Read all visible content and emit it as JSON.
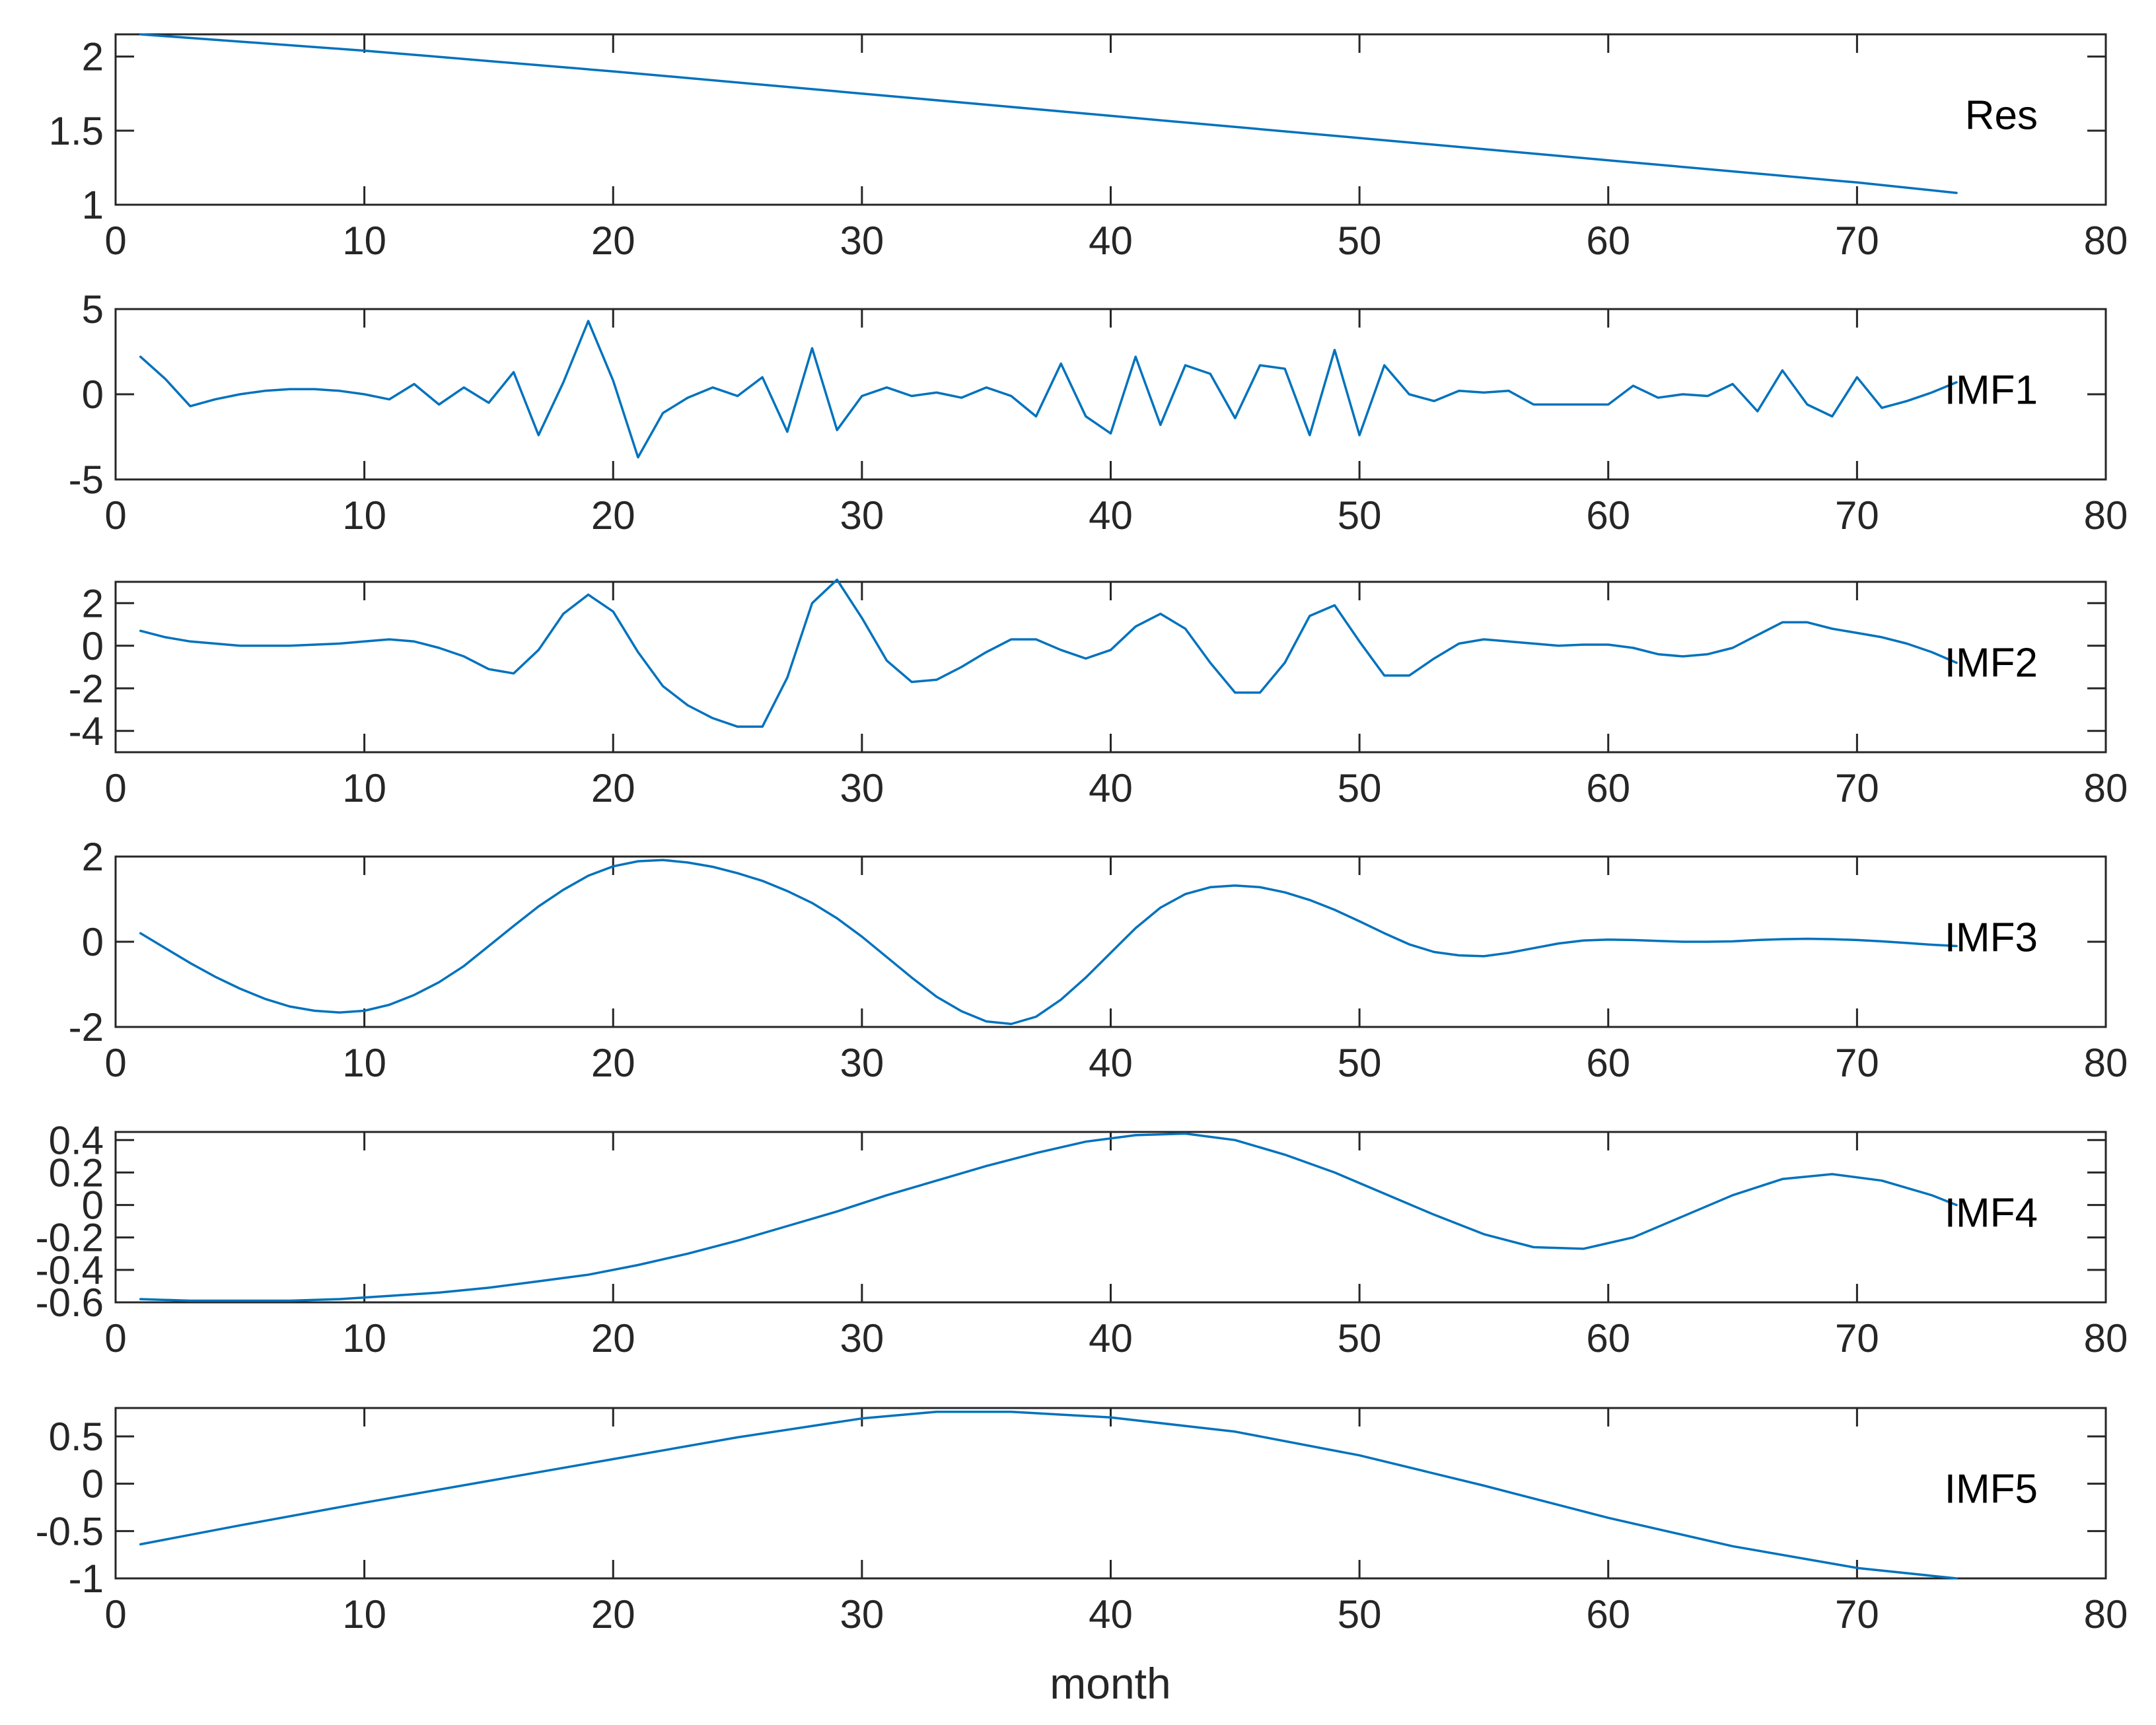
{
  "chart_data": {
    "type": "line",
    "xlabel": "month",
    "line_color": "#0072BD",
    "axis_color": "#262626",
    "grid": false,
    "panels": [
      {
        "label": "Res",
        "xlim": [
          0,
          80
        ],
        "xticks": [
          0,
          10,
          20,
          30,
          40,
          50,
          60,
          70,
          80
        ],
        "ylim": [
          1,
          2.15
        ],
        "yticks": [
          1,
          1.5,
          2
        ],
        "ytick_labels": [
          "1",
          "1.5",
          "2"
        ],
        "series": [
          {
            "x": [
              1,
              10,
              20,
              30,
              40,
              50,
              60,
              70,
              74
            ],
            "y": [
              2.15,
              2.04,
              1.9,
              1.75,
              1.6,
              1.45,
              1.3,
              1.15,
              1.08
            ]
          }
        ]
      },
      {
        "label": "IMF1",
        "xlim": [
          0,
          80
        ],
        "xticks": [
          0,
          10,
          20,
          30,
          40,
          50,
          60,
          70,
          80
        ],
        "ylim": [
          -5,
          5
        ],
        "yticks": [
          -5,
          0,
          5
        ],
        "ytick_labels": [
          "-5",
          "0",
          "5"
        ],
        "series": [
          {
            "x": [
              1,
              2,
              3,
              4,
              5,
              6,
              7,
              8,
              9,
              10,
              11,
              12,
              13,
              14,
              15,
              16,
              17,
              18,
              19,
              20,
              21,
              22,
              23,
              24,
              25,
              26,
              27,
              28,
              29,
              30,
              31,
              32,
              33,
              34,
              35,
              36,
              37,
              38,
              39,
              40,
              41,
              42,
              43,
              44,
              45,
              46,
              47,
              48,
              49,
              50,
              51,
              52,
              53,
              54,
              55,
              56,
              57,
              58,
              59,
              60,
              61,
              62,
              63,
              64,
              65,
              66,
              67,
              68,
              69,
              70,
              71,
              72,
              73,
              74
            ],
            "y": [
              2.2,
              0.9,
              -0.7,
              -0.3,
              0,
              0.2,
              0.3,
              0.3,
              0.2,
              0,
              -0.3,
              0.6,
              -0.6,
              0.4,
              -0.5,
              1.3,
              -2.4,
              0.7,
              4.3,
              0.8,
              -3.7,
              -1.1,
              -0.2,
              0.4,
              -0.1,
              1,
              -2.2,
              2.7,
              -2.1,
              -0.1,
              0.4,
              -0.1,
              0.1,
              -0.2,
              0.4,
              -0.1,
              -1.3,
              1.8,
              -1.3,
              -2.3,
              2.2,
              -1.8,
              1.7,
              1.2,
              -1.4,
              1.7,
              1.5,
              -2.4,
              2.6,
              -2.4,
              1.7,
              0,
              -0.4,
              0.2,
              0.1,
              0.2,
              -0.6,
              -0.6,
              -0.6,
              -0.6,
              0.5,
              -0.2,
              0,
              -0.1,
              0.6,
              -1,
              1.4,
              -0.6,
              -1.3,
              1,
              -0.8,
              -0.4,
              0.1,
              0.7
            ]
          }
        ]
      },
      {
        "label": "IMF2",
        "xlim": [
          0,
          80
        ],
        "xticks": [
          0,
          10,
          20,
          30,
          40,
          50,
          60,
          70,
          80
        ],
        "ylim": [
          -5,
          3
        ],
        "yticks": [
          -4,
          -2,
          0,
          2
        ],
        "ytick_labels": [
          "-4",
          "-2",
          "0",
          "2"
        ],
        "series": [
          {
            "x": [
              1,
              2,
              3,
              4,
              5,
              6,
              7,
              8,
              9,
              10,
              11,
              12,
              13,
              14,
              15,
              16,
              17,
              18,
              19,
              20,
              21,
              22,
              23,
              24,
              25,
              26,
              27,
              28,
              29,
              30,
              31,
              32,
              33,
              34,
              35,
              36,
              37,
              38,
              39,
              40,
              41,
              42,
              43,
              44,
              45,
              46,
              47,
              48,
              49,
              50,
              51,
              52,
              53,
              54,
              55,
              56,
              57,
              58,
              59,
              60,
              61,
              62,
              63,
              64,
              65,
              66,
              67,
              68,
              69,
              70,
              71,
              72,
              73,
              74
            ],
            "y": [
              0.7,
              0.4,
              0.2,
              0.1,
              0,
              0,
              0,
              0.05,
              0.1,
              0.2,
              0.3,
              0.2,
              -0.1,
              -0.5,
              -1.1,
              -1.3,
              -0.2,
              1.5,
              2.4,
              1.6,
              -0.3,
              -1.9,
              -2.8,
              -3.4,
              -3.8,
              -3.8,
              -1.5,
              2,
              3.1,
              1.3,
              -0.7,
              -1.7,
              -1.6,
              -1,
              -0.3,
              0.3,
              0.3,
              -0.2,
              -0.6,
              -0.2,
              0.9,
              1.5,
              0.8,
              -0.8,
              -2.2,
              -2.2,
              -0.8,
              1.4,
              1.9,
              0.2,
              -1.4,
              -1.4,
              -0.6,
              0.1,
              0.3,
              0.2,
              0.1,
              0,
              0.05,
              0.05,
              -0.1,
              -0.4,
              -0.5,
              -0.4,
              -0.1,
              0.5,
              1.1,
              1.1,
              0.8,
              0.6,
              0.4,
              0.1,
              -0.3,
              -0.8
            ]
          }
        ]
      },
      {
        "label": "IMF3",
        "xlim": [
          0,
          80
        ],
        "xticks": [
          0,
          10,
          20,
          30,
          40,
          50,
          60,
          70,
          80
        ],
        "ylim": [
          -2,
          2
        ],
        "yticks": [
          -2,
          0,
          2
        ],
        "ytick_labels": [
          "-2",
          "0",
          "2"
        ],
        "series": [
          {
            "x": [
              1,
              2,
              3,
              4,
              5,
              6,
              7,
              8,
              9,
              10,
              11,
              12,
              13,
              14,
              15,
              16,
              17,
              18,
              19,
              20,
              21,
              22,
              23,
              24,
              25,
              26,
              27,
              28,
              29,
              30,
              31,
              32,
              33,
              34,
              35,
              36,
              37,
              38,
              39,
              40,
              41,
              42,
              43,
              44,
              45,
              46,
              47,
              48,
              49,
              50,
              51,
              52,
              53,
              54,
              55,
              56,
              57,
              58,
              59,
              60,
              61,
              62,
              63,
              64,
              65,
              66,
              67,
              68,
              69,
              70,
              71,
              72,
              73,
              74
            ],
            "y": [
              0.2,
              -0.15,
              -0.5,
              -0.82,
              -1.1,
              -1.34,
              -1.52,
              -1.62,
              -1.66,
              -1.62,
              -1.48,
              -1.25,
              -0.95,
              -0.57,
              -0.1,
              0.37,
              0.83,
              1.22,
              1.55,
              1.77,
              1.89,
              1.92,
              1.86,
              1.76,
              1.61,
              1.43,
              1.19,
              0.91,
              0.55,
              0.12,
              -0.36,
              -0.84,
              -1.29,
              -1.63,
              -1.87,
              -1.93,
              -1.76,
              -1.36,
              -0.84,
              -0.26,
              0.32,
              0.8,
              1.12,
              1.28,
              1.32,
              1.28,
              1.16,
              0.98,
              0.75,
              0.48,
              0.2,
              -0.06,
              -0.24,
              -0.32,
              -0.34,
              -0.26,
              -0.15,
              -0.04,
              0.03,
              0.05,
              0.04,
              0.02,
              0,
              0,
              0.01,
              0.04,
              0.06,
              0.07,
              0.06,
              0.04,
              0.01,
              -0.03,
              -0.07,
              -0.1
            ]
          }
        ]
      },
      {
        "label": "IMF4",
        "xlim": [
          0,
          80
        ],
        "xticks": [
          0,
          10,
          20,
          30,
          40,
          50,
          60,
          70,
          80
        ],
        "ylim": [
          -0.6,
          0.45
        ],
        "yticks": [
          -0.6,
          -0.4,
          -0.2,
          0,
          0.2,
          0.4
        ],
        "ytick_labels": [
          "-0.6",
          "-0.4",
          "-0.2",
          "0",
          "0.2",
          "0.4"
        ],
        "series": [
          {
            "x": [
              1,
              3,
              5,
              7,
              9,
              11,
              13,
              15,
              17,
              19,
              21,
              23,
              25,
              27,
              29,
              31,
              33,
              35,
              37,
              39,
              41,
              43,
              45,
              47,
              49,
              51,
              53,
              55,
              57,
              59,
              61,
              63,
              65,
              67,
              69,
              71,
              73,
              74
            ],
            "y": [
              -0.58,
              -0.59,
              -0.59,
              -0.59,
              -0.58,
              -0.56,
              -0.54,
              -0.51,
              -0.47,
              -0.43,
              -0.37,
              -0.3,
              -0.22,
              -0.13,
              -0.04,
              0.06,
              0.15,
              0.24,
              0.32,
              0.39,
              0.43,
              0.44,
              0.4,
              0.31,
              0.2,
              0.07,
              -0.06,
              -0.18,
              -0.26,
              -0.27,
              -0.2,
              -0.07,
              0.06,
              0.16,
              0.19,
              0.15,
              0.06,
              0
            ]
          }
        ]
      },
      {
        "label": "IMF5",
        "xlim": [
          0,
          80
        ],
        "xticks": [
          0,
          10,
          20,
          30,
          40,
          50,
          60,
          70,
          80
        ],
        "ylim": [
          -1,
          0.8
        ],
        "yticks": [
          -1,
          -0.5,
          0,
          0.5
        ],
        "ytick_labels": [
          "-1",
          "-0.5",
          "0",
          "0.5"
        ],
        "series": [
          {
            "x": [
              1,
              5,
              10,
              15,
              20,
              25,
              30,
              33,
              36,
              40,
              45,
              50,
              55,
              60,
              65,
              70,
              74
            ],
            "y": [
              -0.64,
              -0.44,
              -0.2,
              0.03,
              0.26,
              0.49,
              0.69,
              0.76,
              0.76,
              0.7,
              0.55,
              0.3,
              -0.02,
              -0.36,
              -0.66,
              -0.89,
              -1
            ]
          }
        ]
      }
    ]
  }
}
